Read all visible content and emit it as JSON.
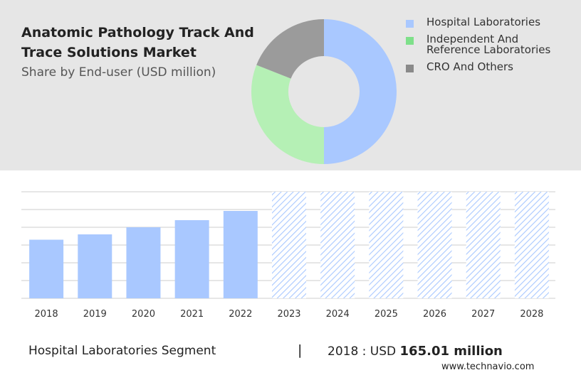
{
  "header": {
    "title_line1": "Anatomic Pathology Track And",
    "title_line2": "Trace Solutions Market",
    "subtitle": "Share by End-user (USD million)"
  },
  "chart_data": [
    {
      "type": "pie",
      "donut": true,
      "slices": [
        {
          "label": "Hospital Laboratories",
          "share": 50,
          "color": "#a9c8ff"
        },
        {
          "label": "Independent And Reference Laboratories",
          "share": 31,
          "color": "#b5f0b5"
        },
        {
          "label": "CRO And Others",
          "share": 19,
          "color": "#9b9b9b"
        }
      ],
      "legend_labels": [
        [
          "Hospital Laboratories"
        ],
        [
          "Independent And",
          "Reference Laboratories"
        ],
        [
          "CRO And Others"
        ]
      ],
      "legend_colors": [
        "#a9c8ff",
        "#7ee08a",
        "#8a8a8a"
      ],
      "legend_position": "right"
    },
    {
      "type": "bar",
      "categories": [
        "2018",
        "2019",
        "2020",
        "2021",
        "2022",
        "2023",
        "2024",
        "2025",
        "2026",
        "2027",
        "2028"
      ],
      "values": [
        165.01,
        180,
        200,
        220,
        246,
        300,
        300,
        300,
        300,
        300,
        300
      ],
      "forecast_from": "2023",
      "ylim": [
        0,
        300
      ],
      "grid": true,
      "color": "#a9c8ff",
      "forecast_color": "#a9c8ff"
    }
  ],
  "footer": {
    "segment": "Hospital Laboratories Segment",
    "separator": "|",
    "value_prefix": "2018 : USD ",
    "value_bold": "165.01 million",
    "site": "www.technavio.com"
  }
}
